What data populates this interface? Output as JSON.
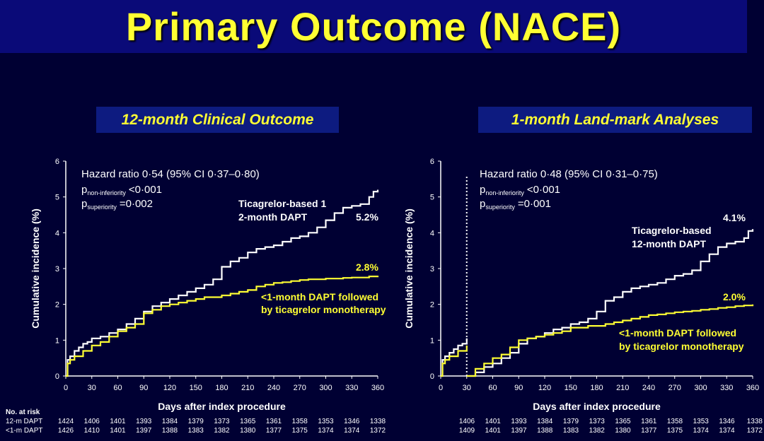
{
  "slide": {
    "title": "Primary Outcome (NACE)",
    "colors": {
      "background": "#000033",
      "title": "#ffff33",
      "white_series": "#ffffff",
      "yellow_series": "#ffff33"
    }
  },
  "panels": [
    {
      "heading": "12-month Clinical Outcome",
      "hr_text": "Hazard ratio 0·54 (95% CI 0·37–0·80)",
      "p1_prefix": "p",
      "p1_sub": "non-inferiority",
      "p1_value": "<0·001",
      "p2_prefix": "p",
      "p2_sub": "superiority",
      "p2_value": "=0·002",
      "white_label_line1": "Ticagrelor-based 1",
      "white_label_line2": "2-month DAPT",
      "white_end": "5.2%",
      "yellow_label_line1": "<1-month DAPT followed",
      "yellow_label_line2": "by ticagrelor monotherapy",
      "yellow_end": "2.8%"
    },
    {
      "heading": "1-month Land-mark Analyses",
      "hr_text": "Hazard ratio 0·48 (95% CI 0·31–0·75)",
      "p1_prefix": "p",
      "p1_sub": "non-inferiority",
      "p1_value": "<0·001",
      "p2_prefix": "p",
      "p2_sub": "superiority",
      "p2_value": "=0·001",
      "white_label_line1": "Ticagrelor-based",
      "white_label_line2": "12-month DAPT",
      "white_end": "4.1%",
      "yellow_label_line1": "<1-month DAPT followed",
      "yellow_label_line2": "by ticagrelor monotherapy",
      "yellow_end": "2.0%"
    }
  ],
  "risk_table": {
    "header": "No. at risk",
    "row_labels": [
      "12-m DAPT",
      "<1-m DAPT"
    ],
    "left": [
      [
        "1424",
        "1406",
        "1401",
        "1393",
        "1384",
        "1379",
        "1373",
        "1365",
        "1361",
        "1358",
        "1353",
        "1346",
        "1338"
      ],
      [
        "1426",
        "1410",
        "1401",
        "1397",
        "1388",
        "1383",
        "1382",
        "1380",
        "1377",
        "1375",
        "1374",
        "1374",
        "1372"
      ]
    ],
    "right": [
      [
        "1406",
        "1401",
        "1393",
        "1384",
        "1379",
        "1373",
        "1365",
        "1361",
        "1358",
        "1353",
        "1346",
        "1338"
      ],
      [
        "1409",
        "1401",
        "1397",
        "1388",
        "1383",
        "1382",
        "1380",
        "1377",
        "1375",
        "1374",
        "1374",
        "1372"
      ]
    ]
  },
  "chart_data": [
    {
      "type": "line",
      "title": "12-month Clinical Outcome",
      "xlabel": "Days after index procedure",
      "ylabel": "Cumulative incidence (%)",
      "xlim": [
        0,
        360
      ],
      "ylim": [
        0,
        6
      ],
      "xticks": [
        0,
        30,
        60,
        90,
        120,
        150,
        180,
        210,
        240,
        270,
        300,
        330,
        360
      ],
      "yticks": [
        0,
        1,
        2,
        3,
        4,
        5,
        6
      ],
      "grid": false,
      "series": [
        {
          "name": "Ticagrelor-based 12-month DAPT",
          "color": "#ffffff",
          "x": [
            0,
            2,
            5,
            10,
            15,
            20,
            25,
            30,
            40,
            50,
            60,
            70,
            80,
            90,
            100,
            110,
            120,
            130,
            140,
            150,
            160,
            170,
            180,
            190,
            200,
            210,
            220,
            230,
            240,
            250,
            260,
            270,
            280,
            290,
            300,
            310,
            320,
            330,
            340,
            350,
            355,
            360
          ],
          "y": [
            0,
            0.45,
            0.55,
            0.7,
            0.8,
            0.9,
            0.95,
            1.05,
            1.1,
            1.2,
            1.3,
            1.45,
            1.6,
            1.8,
            1.95,
            2.05,
            2.15,
            2.25,
            2.35,
            2.45,
            2.55,
            2.7,
            3.05,
            3.2,
            3.3,
            3.45,
            3.55,
            3.6,
            3.65,
            3.75,
            3.85,
            3.9,
            4.0,
            4.15,
            4.35,
            4.55,
            4.7,
            4.75,
            4.8,
            5.0,
            5.15,
            5.2
          ]
        },
        {
          "name": "<1-month DAPT followed by ticagrelor monotherapy",
          "color": "#ffff33",
          "x": [
            0,
            2,
            5,
            10,
            20,
            30,
            40,
            50,
            60,
            70,
            80,
            90,
            100,
            110,
            120,
            130,
            140,
            150,
            160,
            170,
            180,
            190,
            200,
            210,
            220,
            230,
            240,
            250,
            260,
            270,
            280,
            290,
            300,
            310,
            320,
            330,
            340,
            350,
            360
          ],
          "y": [
            0,
            0.35,
            0.45,
            0.55,
            0.7,
            0.85,
            0.95,
            1.1,
            1.25,
            1.35,
            1.45,
            1.75,
            1.85,
            1.95,
            2.0,
            2.05,
            2.1,
            2.15,
            2.2,
            2.2,
            2.25,
            2.3,
            2.35,
            2.4,
            2.5,
            2.55,
            2.6,
            2.62,
            2.65,
            2.68,
            2.7,
            2.7,
            2.72,
            2.72,
            2.74,
            2.75,
            2.75,
            2.78,
            2.8
          ]
        }
      ]
    },
    {
      "type": "line",
      "title": "1-month Land-mark Analyses",
      "xlabel": "Days after index procedure",
      "ylabel": "Cumulative incidence (%)",
      "xlim": [
        0,
        360
      ],
      "ylim": [
        0,
        6
      ],
      "xticks": [
        0,
        30,
        60,
        90,
        120,
        150,
        180,
        210,
        240,
        270,
        300,
        330,
        360
      ],
      "yticks": [
        0,
        1,
        2,
        3,
        4,
        5,
        6
      ],
      "grid": false,
      "landmark_day": 30,
      "series": [
        {
          "name": "Ticagrelor-based 12-month DAPT",
          "color": "#ffffff",
          "x": [
            0,
            2,
            5,
            10,
            15,
            20,
            25,
            30,
            30,
            40,
            50,
            60,
            70,
            80,
            90,
            100,
            110,
            120,
            130,
            140,
            150,
            160,
            170,
            180,
            190,
            200,
            210,
            220,
            230,
            240,
            250,
            260,
            270,
            280,
            290,
            300,
            310,
            320,
            330,
            340,
            350,
            355,
            360
          ],
          "y": [
            0,
            0.45,
            0.55,
            0.65,
            0.75,
            0.85,
            0.9,
            1.05,
            0,
            0.1,
            0.25,
            0.35,
            0.5,
            0.65,
            0.9,
            1.05,
            1.1,
            1.2,
            1.3,
            1.35,
            1.45,
            1.5,
            1.6,
            1.8,
            2.1,
            2.2,
            2.35,
            2.45,
            2.5,
            2.55,
            2.6,
            2.7,
            2.8,
            2.85,
            2.95,
            3.2,
            3.4,
            3.6,
            3.7,
            3.75,
            3.85,
            4.05,
            4.1
          ]
        },
        {
          "name": "<1-month DAPT followed by ticagrelor monotherapy",
          "color": "#ffff33",
          "x": [
            0,
            2,
            5,
            10,
            20,
            30,
            30,
            40,
            50,
            60,
            70,
            80,
            90,
            100,
            110,
            120,
            130,
            140,
            150,
            160,
            170,
            180,
            190,
            200,
            210,
            220,
            230,
            240,
            250,
            260,
            270,
            280,
            290,
            300,
            310,
            320,
            330,
            340,
            350,
            360
          ],
          "y": [
            0,
            0.35,
            0.45,
            0.55,
            0.7,
            0.85,
            0,
            0.2,
            0.35,
            0.5,
            0.6,
            0.8,
            1.0,
            1.05,
            1.1,
            1.15,
            1.2,
            1.25,
            1.35,
            1.35,
            1.4,
            1.4,
            1.45,
            1.5,
            1.55,
            1.6,
            1.65,
            1.7,
            1.72,
            1.75,
            1.78,
            1.8,
            1.82,
            1.85,
            1.87,
            1.9,
            1.92,
            1.95,
            1.97,
            2.0
          ]
        }
      ]
    }
  ]
}
